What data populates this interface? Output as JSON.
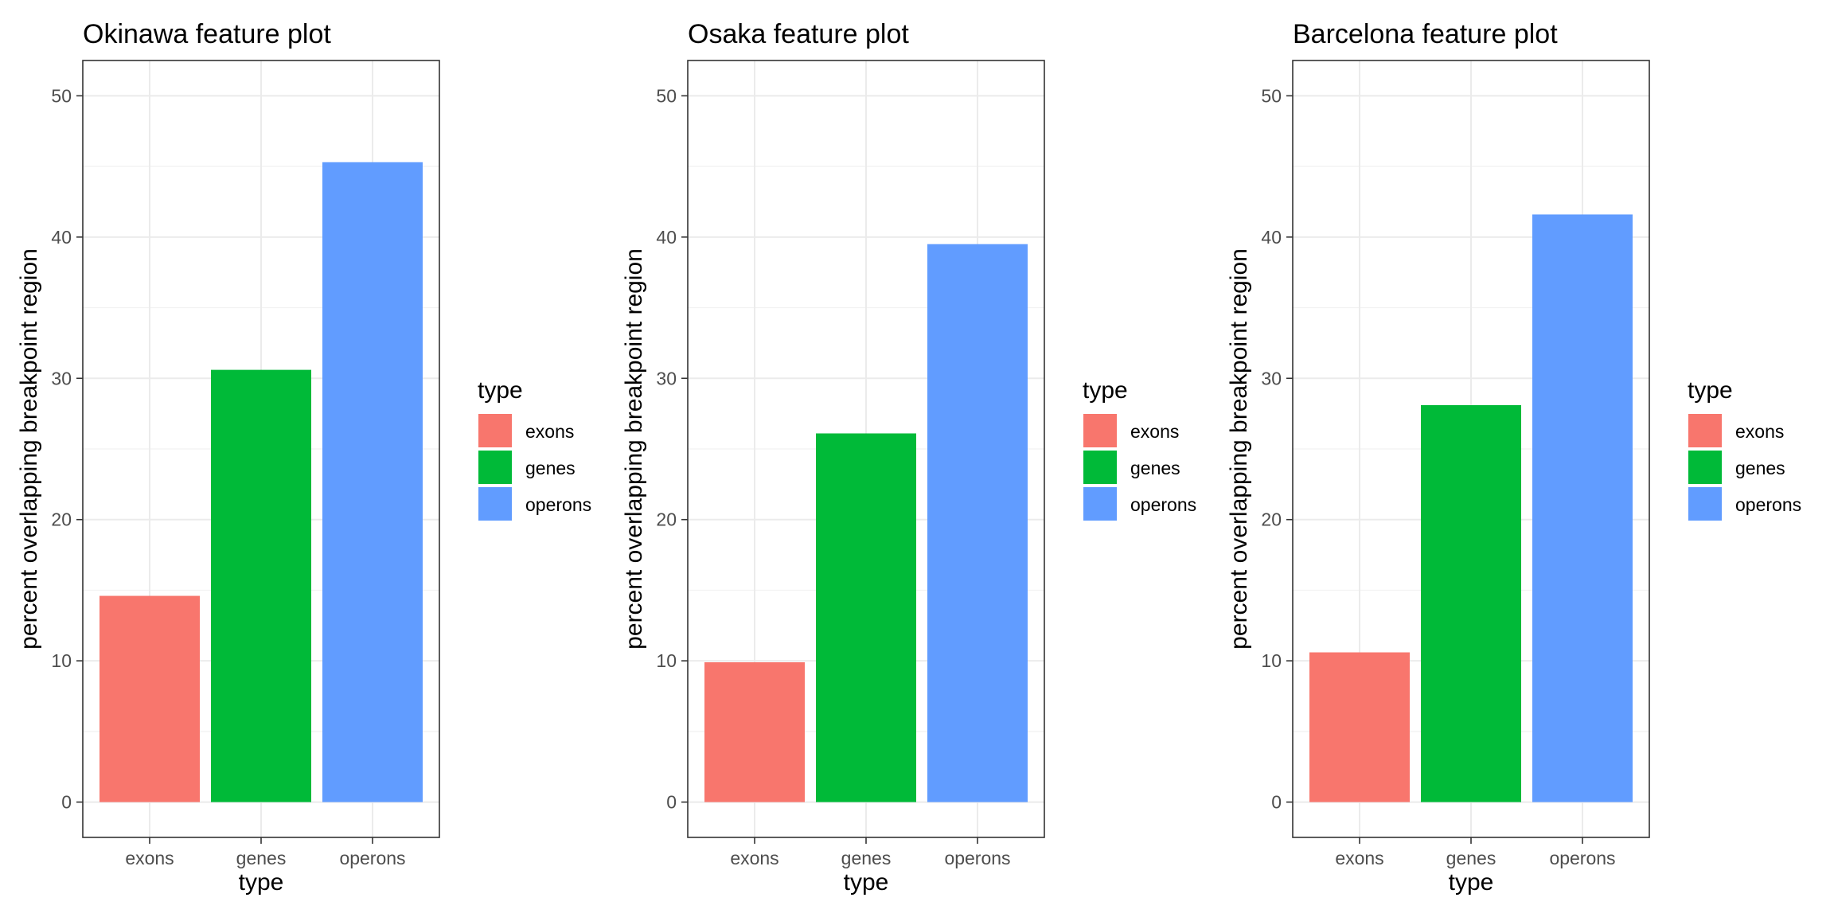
{
  "chart_data": [
    {
      "type": "bar",
      "title": "Okinawa feature plot",
      "xlabel": "type",
      "ylabel": "percent overlapping breakpoint region",
      "categories": [
        "exons",
        "genes",
        "operons"
      ],
      "values": [
        14.6,
        30.6,
        45.3
      ],
      "colors": [
        "#F8766D",
        "#00BA38",
        "#619CFF"
      ],
      "ylim": [
        -2.5,
        52.5
      ],
      "yticks": [
        0,
        10,
        20,
        30,
        40,
        50
      ],
      "grid": true,
      "legend": {
        "title": "type",
        "position": "right",
        "entries": [
          "exons",
          "genes",
          "operons"
        ]
      }
    },
    {
      "type": "bar",
      "title": "Osaka feature plot",
      "xlabel": "type",
      "ylabel": "percent overlapping breakpoint region",
      "categories": [
        "exons",
        "genes",
        "operons"
      ],
      "values": [
        9.9,
        26.1,
        39.5
      ],
      "colors": [
        "#F8766D",
        "#00BA38",
        "#619CFF"
      ],
      "ylim": [
        -2.5,
        52.5
      ],
      "yticks": [
        0,
        10,
        20,
        30,
        40,
        50
      ],
      "grid": true,
      "legend": {
        "title": "type",
        "position": "right",
        "entries": [
          "exons",
          "genes",
          "operons"
        ]
      }
    },
    {
      "type": "bar",
      "title": "Barcelona feature plot",
      "xlabel": "type",
      "ylabel": "percent overlapping breakpoint region",
      "categories": [
        "exons",
        "genes",
        "operons"
      ],
      "values": [
        10.6,
        28.1,
        41.6
      ],
      "colors": [
        "#F8766D",
        "#00BA38",
        "#619CFF"
      ],
      "ylim": [
        -2.5,
        52.5
      ],
      "yticks": [
        0,
        10,
        20,
        30,
        40,
        50
      ],
      "grid": true,
      "legend": {
        "title": "type",
        "position": "right",
        "entries": [
          "exons",
          "genes",
          "operons"
        ]
      }
    }
  ]
}
